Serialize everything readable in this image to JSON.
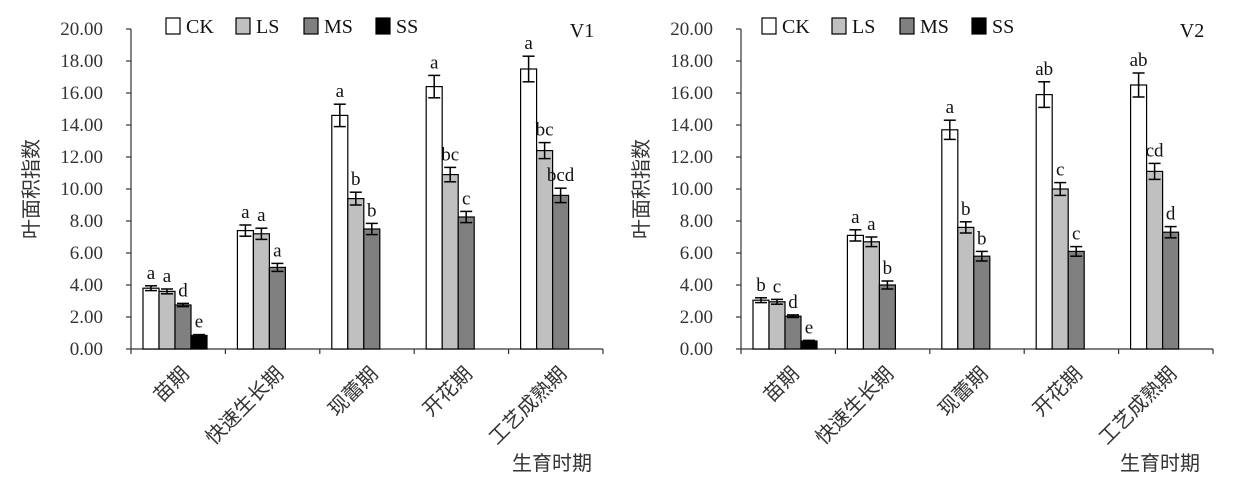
{
  "colors": {
    "CK": "#ffffff",
    "LS": "#c0c0c0",
    "MS": "#808080",
    "SS": "#000000",
    "axis": "#333333",
    "bar_stroke": "#000000"
  },
  "chart_data": [
    {
      "type": "bar",
      "panel_label": "V1",
      "categories": [
        "苗期",
        "快速生长期",
        "现蕾期",
        "开花期",
        "工艺成熟期"
      ],
      "xlabel": "生育时期",
      "ylabel": "叶面积指数",
      "ylim": [
        0,
        20
      ],
      "yticks": [
        "0.00",
        "2.00",
        "4.00",
        "6.00",
        "8.00",
        "10.00",
        "12.00",
        "14.00",
        "16.00",
        "18.00",
        "20.00"
      ],
      "grid": false,
      "legend_position": "top-left",
      "series": [
        {
          "name": "CK",
          "values": [
            3.8,
            7.4,
            14.6,
            16.4,
            17.5
          ],
          "errors": [
            0.15,
            0.35,
            0.7,
            0.7,
            0.8
          ],
          "labels": [
            "a",
            "a",
            "a",
            "a",
            "a"
          ]
        },
        {
          "name": "LS",
          "values": [
            3.6,
            7.2,
            9.4,
            10.9,
            12.4
          ],
          "errors": [
            0.15,
            0.35,
            0.4,
            0.45,
            0.5
          ],
          "labels": [
            "a",
            "a",
            "b",
            "bc",
            "bc"
          ]
        },
        {
          "name": "MS",
          "values": [
            2.75,
            5.1,
            7.5,
            8.25,
            9.6
          ],
          "errors": [
            0.1,
            0.25,
            0.35,
            0.35,
            0.45
          ],
          "labels": [
            "d",
            "a",
            "b",
            "c",
            "bcd"
          ]
        },
        {
          "name": "SS",
          "values": [
            0.85,
            null,
            null,
            null,
            null
          ],
          "errors": [
            0.05,
            null,
            null,
            null,
            null
          ],
          "labels": [
            "e",
            "",
            "",
            "",
            ""
          ]
        }
      ]
    },
    {
      "type": "bar",
      "panel_label": "V2",
      "categories": [
        "苗期",
        "快速生长期",
        "现蕾期",
        "开花期",
        "工艺成熟期"
      ],
      "xlabel": "生育时期",
      "ylabel": "叶面积指数",
      "ylim": [
        0,
        20
      ],
      "yticks": [
        "0.00",
        "2.00",
        "4.00",
        "6.00",
        "8.00",
        "10.00",
        "12.00",
        "14.00",
        "16.00",
        "18.00",
        "20.00"
      ],
      "grid": false,
      "legend_position": "top-left",
      "series": [
        {
          "name": "CK",
          "values": [
            3.05,
            7.1,
            13.7,
            15.9,
            16.5
          ],
          "errors": [
            0.15,
            0.35,
            0.6,
            0.8,
            0.75
          ],
          "labels": [
            "b",
            "a",
            "a",
            "ab",
            "ab"
          ]
        },
        {
          "name": "LS",
          "values": [
            2.95,
            6.7,
            7.6,
            10.0,
            11.1
          ],
          "errors": [
            0.15,
            0.3,
            0.35,
            0.4,
            0.5
          ],
          "labels": [
            "c",
            "a",
            "b",
            "c",
            "cd"
          ]
        },
        {
          "name": "MS",
          "values": [
            2.05,
            4.0,
            5.8,
            6.1,
            7.3
          ],
          "errors": [
            0.08,
            0.25,
            0.3,
            0.3,
            0.35
          ],
          "labels": [
            "d",
            "b",
            "b",
            "c",
            "d"
          ]
        },
        {
          "name": "SS",
          "values": [
            0.5,
            null,
            null,
            null,
            null
          ],
          "errors": [
            0.04,
            null,
            null,
            null,
            null
          ],
          "labels": [
            "e",
            "",
            "",
            "",
            ""
          ]
        }
      ]
    }
  ]
}
